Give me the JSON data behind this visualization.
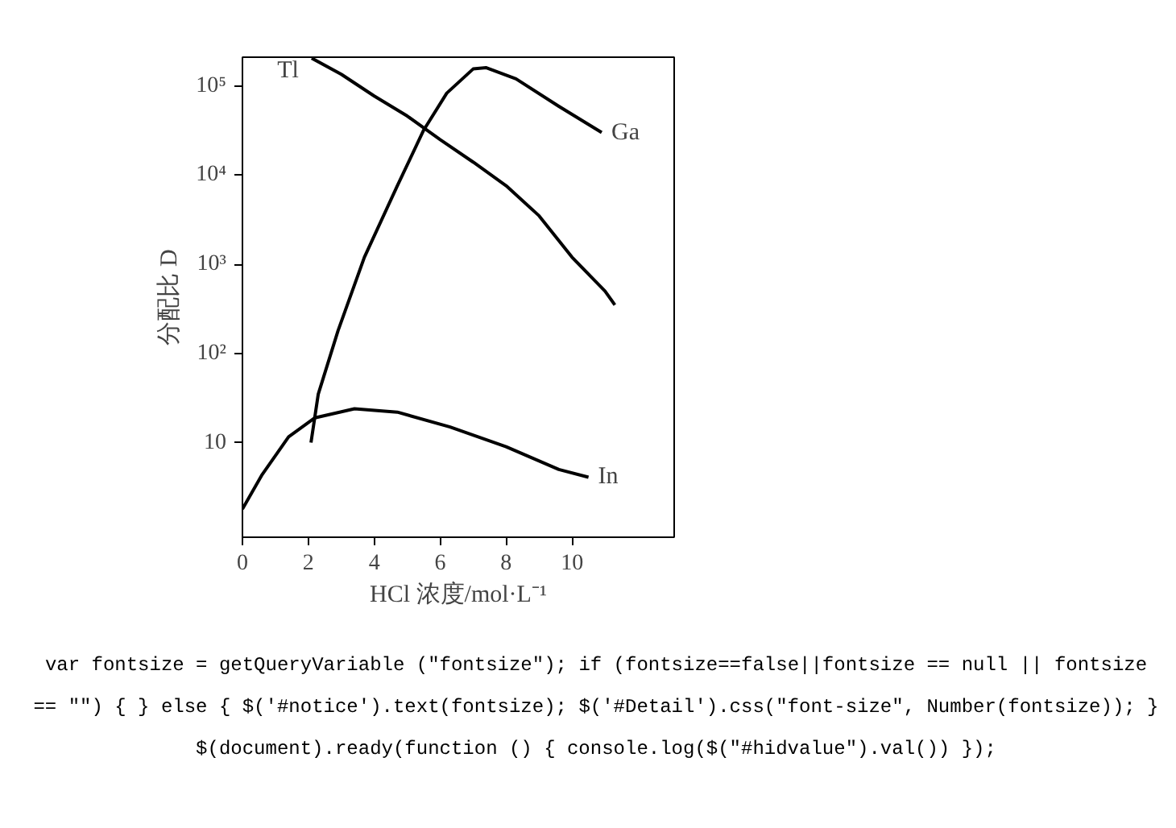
{
  "chart_data": {
    "type": "line",
    "xlabel": "HCl 浓度/mol·L⁻¹",
    "ylabel": "分配比 D",
    "log": "y",
    "grid": false,
    "line_style": "solid",
    "marker": "none",
    "xlim": [
      0,
      13.1
    ],
    "xticks": [
      0,
      2,
      4,
      6,
      8,
      10
    ],
    "ylim": [
      0.87,
      210000
    ],
    "yticks": [
      {
        "value": 10,
        "label": "10"
      },
      {
        "value": 100,
        "label": "10²"
      },
      {
        "value": 1000,
        "label": "10³"
      },
      {
        "value": 10000,
        "label": "10⁴"
      },
      {
        "value": 100000,
        "label": "10⁵"
      }
    ],
    "series": [
      {
        "name": "Tl",
        "color": "#000000",
        "x": [
          2.1,
          3,
          4,
          5,
          6,
          7,
          8,
          9,
          10,
          11,
          11.3
        ],
        "values": [
          205000,
          135000,
          77000,
          46000,
          25000,
          14000,
          7600,
          3500,
          1200,
          500,
          350
        ]
      },
      {
        "name": "Ga",
        "color": "#000000",
        "x": [
          2.08,
          2.3,
          2.9,
          3.7,
          4.7,
          5.5,
          6.2,
          7.0,
          7.4,
          8.3,
          9.6,
          10.9
        ],
        "values": [
          10,
          35,
          180,
          1200,
          7600,
          32000,
          83000,
          155000,
          160000,
          120000,
          59000,
          30000
        ]
      },
      {
        "name": "In",
        "color": "#000000",
        "x": [
          0,
          0.6,
          1.4,
          2.2,
          3.4,
          4.7,
          6.3,
          8,
          9.6,
          10.5
        ],
        "values": [
          1.8,
          4.4,
          11.6,
          19,
          24,
          22,
          15,
          9,
          5,
          4.1
        ]
      }
    ],
    "annotations": [
      "var fontsize = getQueryVariable (\"fontsize\"); if (fontsize==false||fontsize == null || fontsize == \"\") { } else { $('#notice').text(fontsize); $('#Detail').css(\"font-size\", Number(fontsize)); } $(document).ready(function () { console.log($(\"#hidvalue\").val()) });"
    ]
  }
}
